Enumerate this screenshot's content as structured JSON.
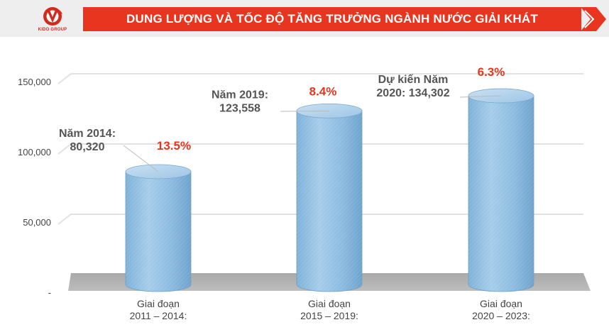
{
  "header": {
    "logo_text": "KIDO GROUP",
    "title": "DUNG LƯỢNG VÀ TỐC ĐỘ TĂNG TRƯỞNG NGÀNH NƯỚC GIẢI KHÁT",
    "accent_color": "#e8351f"
  },
  "chart_data": {
    "type": "bar",
    "style": "3d-cylinder",
    "grid": true,
    "ylim": [
      0,
      150000
    ],
    "yticks": [
      {
        "value": 0,
        "label": "-"
      },
      {
        "value": 50000,
        "label": "50,000"
      },
      {
        "value": 100000,
        "label": "100,000"
      },
      {
        "value": 150000,
        "label": "150,000"
      }
    ],
    "categories": [
      [
        "Giai đoạn",
        "2011 – 2014:"
      ],
      [
        "Giai đoạn",
        "2015 – 2019:"
      ],
      [
        "Giai đoạn",
        "2020 – 2023:"
      ]
    ],
    "values": [
      80320,
      123558,
      134302
    ],
    "value_labels": [
      [
        "Năm 2014:",
        "80,320"
      ],
      [
        "Năm 2019:",
        "123,558"
      ],
      [
        "Dự kiến Năm",
        "2020:  134,302"
      ]
    ],
    "growth_rates": [
      "13.5%",
      "8.4%",
      "6.3%"
    ],
    "bar_color": "#8fbde0",
    "growth_color": "#e8351f"
  }
}
